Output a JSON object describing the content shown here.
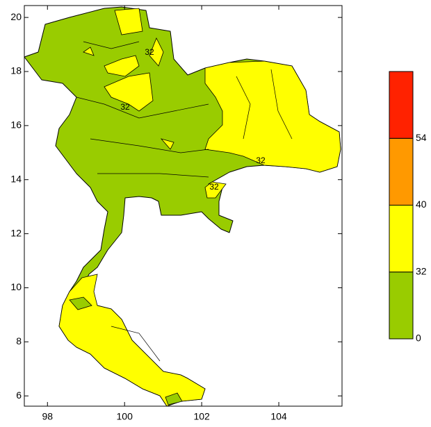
{
  "map": {
    "lon_range": [
      97.4,
      105.64
    ],
    "lat_range": [
      5.62,
      20.44
    ],
    "lon_ticks": [
      98,
      100,
      102,
      104
    ],
    "lat_ticks": [
      6,
      8,
      10,
      12,
      14,
      16,
      18,
      20
    ],
    "contour_labels": [
      "32",
      "32",
      "32",
      "32"
    ]
  },
  "colorbar": {
    "colors": [
      "#99cc00",
      "#ffff00",
      "#ff9900",
      "#ff2200"
    ],
    "labels": [
      0,
      32,
      40,
      54
    ]
  }
}
